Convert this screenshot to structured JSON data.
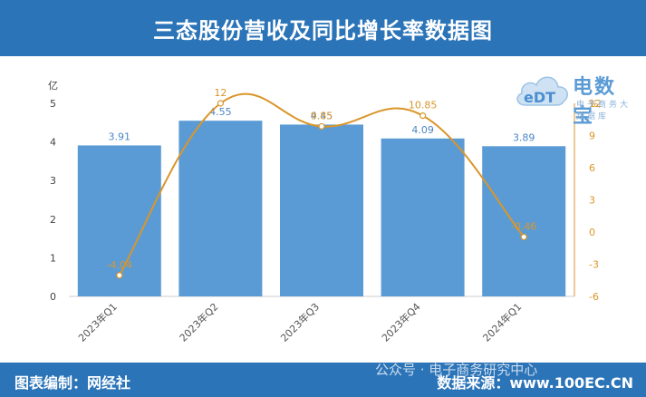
{
  "title": "三态股份营收及同比增长率数据图",
  "footer": {
    "left": "图表编制：网经社",
    "right": "数据来源：www.100EC.CN",
    "watermark": "公众号 · 电子商务研究中心"
  },
  "logo": {
    "name": "电数宝",
    "sub": "电子商务大数据库",
    "mark": "eDT"
  },
  "colors": {
    "header": "#2b74b8",
    "bar": "#5b9bd5",
    "line": "#d9962b",
    "left_axis": "#444444",
    "right_axis": "#d9962b"
  },
  "chart_data": {
    "type": "bar",
    "categories": [
      "2023年Q1",
      "2023年Q2",
      "2023年Q3",
      "2023年Q4",
      "2024年Q1"
    ],
    "series": [
      {
        "name": "",
        "type": "bar",
        "axis": "left",
        "values": [
          3.91,
          4.55,
          4.45,
          4.09,
          3.89
        ]
      },
      {
        "name": "",
        "type": "line",
        "axis": "right",
        "values": [
          -4.04,
          12,
          9.85,
          10.85,
          -0.46
        ]
      }
    ],
    "bar_labels": [
      "3.91",
      "4.55",
      "4.45",
      "4.09",
      "3.89"
    ],
    "line_labels": [
      "-4.04",
      "12",
      "9.85",
      "10.85",
      "-0.46"
    ],
    "left_axis": {
      "unit": "亿",
      "ylim": [
        0,
        5
      ],
      "ticks": [
        "0",
        "1",
        "2",
        "3",
        "4",
        "5"
      ]
    },
    "right_axis": {
      "unit": "%",
      "ylim": [
        -6,
        12
      ],
      "ticks": [
        "-6",
        "-3",
        "0",
        "3",
        "6",
        "9",
        "12"
      ]
    },
    "grid": false,
    "legend": "none"
  }
}
